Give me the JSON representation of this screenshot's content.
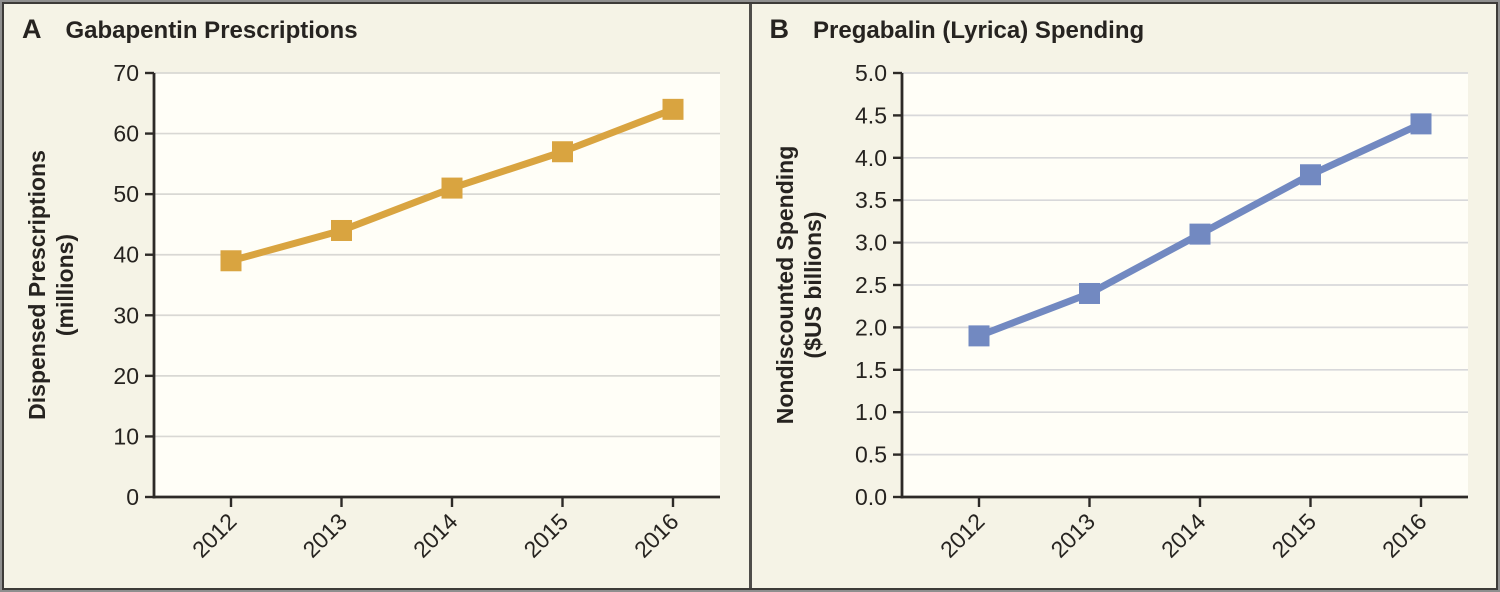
{
  "figure_title": "",
  "chart_data": [
    {
      "type": "line",
      "panel_label": "A",
      "title": "Gabapentin Prescriptions",
      "categories": [
        "2012",
        "2013",
        "2014",
        "2015",
        "2016"
      ],
      "values": [
        39,
        44,
        51,
        57,
        64
      ],
      "xlabel": "",
      "ylabel": "Dispensed Prescriptions (millions)",
      "ylabel_lines": [
        "Dispensed Prescriptions",
        "(millions)"
      ],
      "ylim": [
        0,
        70
      ],
      "ytick_step": 10,
      "ytick_labels": [
        "0",
        "10",
        "20",
        "30",
        "40",
        "50",
        "60",
        "70"
      ],
      "grid": true,
      "legend": "none",
      "marker": "square",
      "line_color": "#d9a440",
      "plot_background": "#fffef7",
      "gridline_color": "#d9d8d4"
    },
    {
      "type": "line",
      "panel_label": "B",
      "title": "Pregabalin (Lyrica) Spending",
      "categories": [
        "2012",
        "2013",
        "2014",
        "2015",
        "2016"
      ],
      "values": [
        1.9,
        2.4,
        3.1,
        3.8,
        4.4
      ],
      "xlabel": "",
      "ylabel": "Nondiscounted Spending ($US billions)",
      "ylabel_lines": [
        "Nondiscounted Spending",
        "($US billions)"
      ],
      "ylim": [
        0.0,
        5.0
      ],
      "ytick_step": 0.5,
      "ytick_labels": [
        "0.0",
        "0.5",
        "1.0",
        "1.5",
        "2.0",
        "2.5",
        "3.0",
        "3.5",
        "4.0",
        "4.5",
        "5.0"
      ],
      "grid": true,
      "legend": "none",
      "marker": "square",
      "line_color": "#7289c1",
      "plot_background": "#fffef7",
      "gridline_color": "#d8d8da"
    }
  ]
}
